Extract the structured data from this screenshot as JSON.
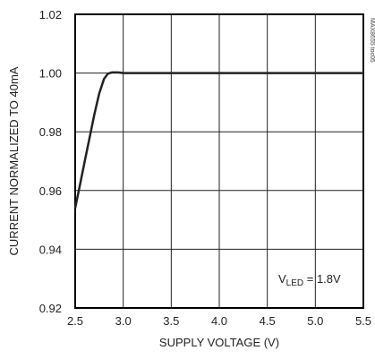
{
  "chart_data": {
    "type": "line",
    "title": "",
    "xlabel": "SUPPLY VOLTAGE (V)",
    "ylabel": "CURRENT NORMALIZED TO 40mA",
    "xlim": [
      2.5,
      5.5
    ],
    "ylim": [
      0.92,
      1.02
    ],
    "x_ticks": [
      2.5,
      3.0,
      3.5,
      4.0,
      4.5,
      5.0,
      5.5
    ],
    "x_tick_labels": [
      "2.5",
      "3.0",
      "3.5",
      "4.0",
      "4.5",
      "5.0",
      "5.5"
    ],
    "y_ticks": [
      0.92,
      0.94,
      0.96,
      0.98,
      1.0,
      1.02
    ],
    "y_tick_labels": [
      "0.92",
      "0.94",
      "0.96",
      "0.98",
      "1.00",
      "1.02"
    ],
    "grid": true,
    "series": [
      {
        "x": [
          2.5,
          2.55,
          2.6,
          2.65,
          2.7,
          2.75,
          2.8,
          2.84,
          2.88,
          2.95,
          3.0,
          3.5,
          4.0,
          4.5,
          5.0,
          5.5
        ],
        "values": [
          0.954,
          0.962,
          0.97,
          0.978,
          0.986,
          0.993,
          0.998,
          0.9998,
          1.0002,
          1.0002,
          1.0,
          1.0,
          1.0,
          1.0,
          1.0,
          1.0
        ]
      }
    ],
    "annotation": {
      "main": "V",
      "sub": "LED",
      "rest": " = 1.8V"
    },
    "figure_id": "MAX8655 toc05",
    "colors": {
      "line": "#222222",
      "grid": "#222222",
      "frame": "#000000"
    }
  }
}
